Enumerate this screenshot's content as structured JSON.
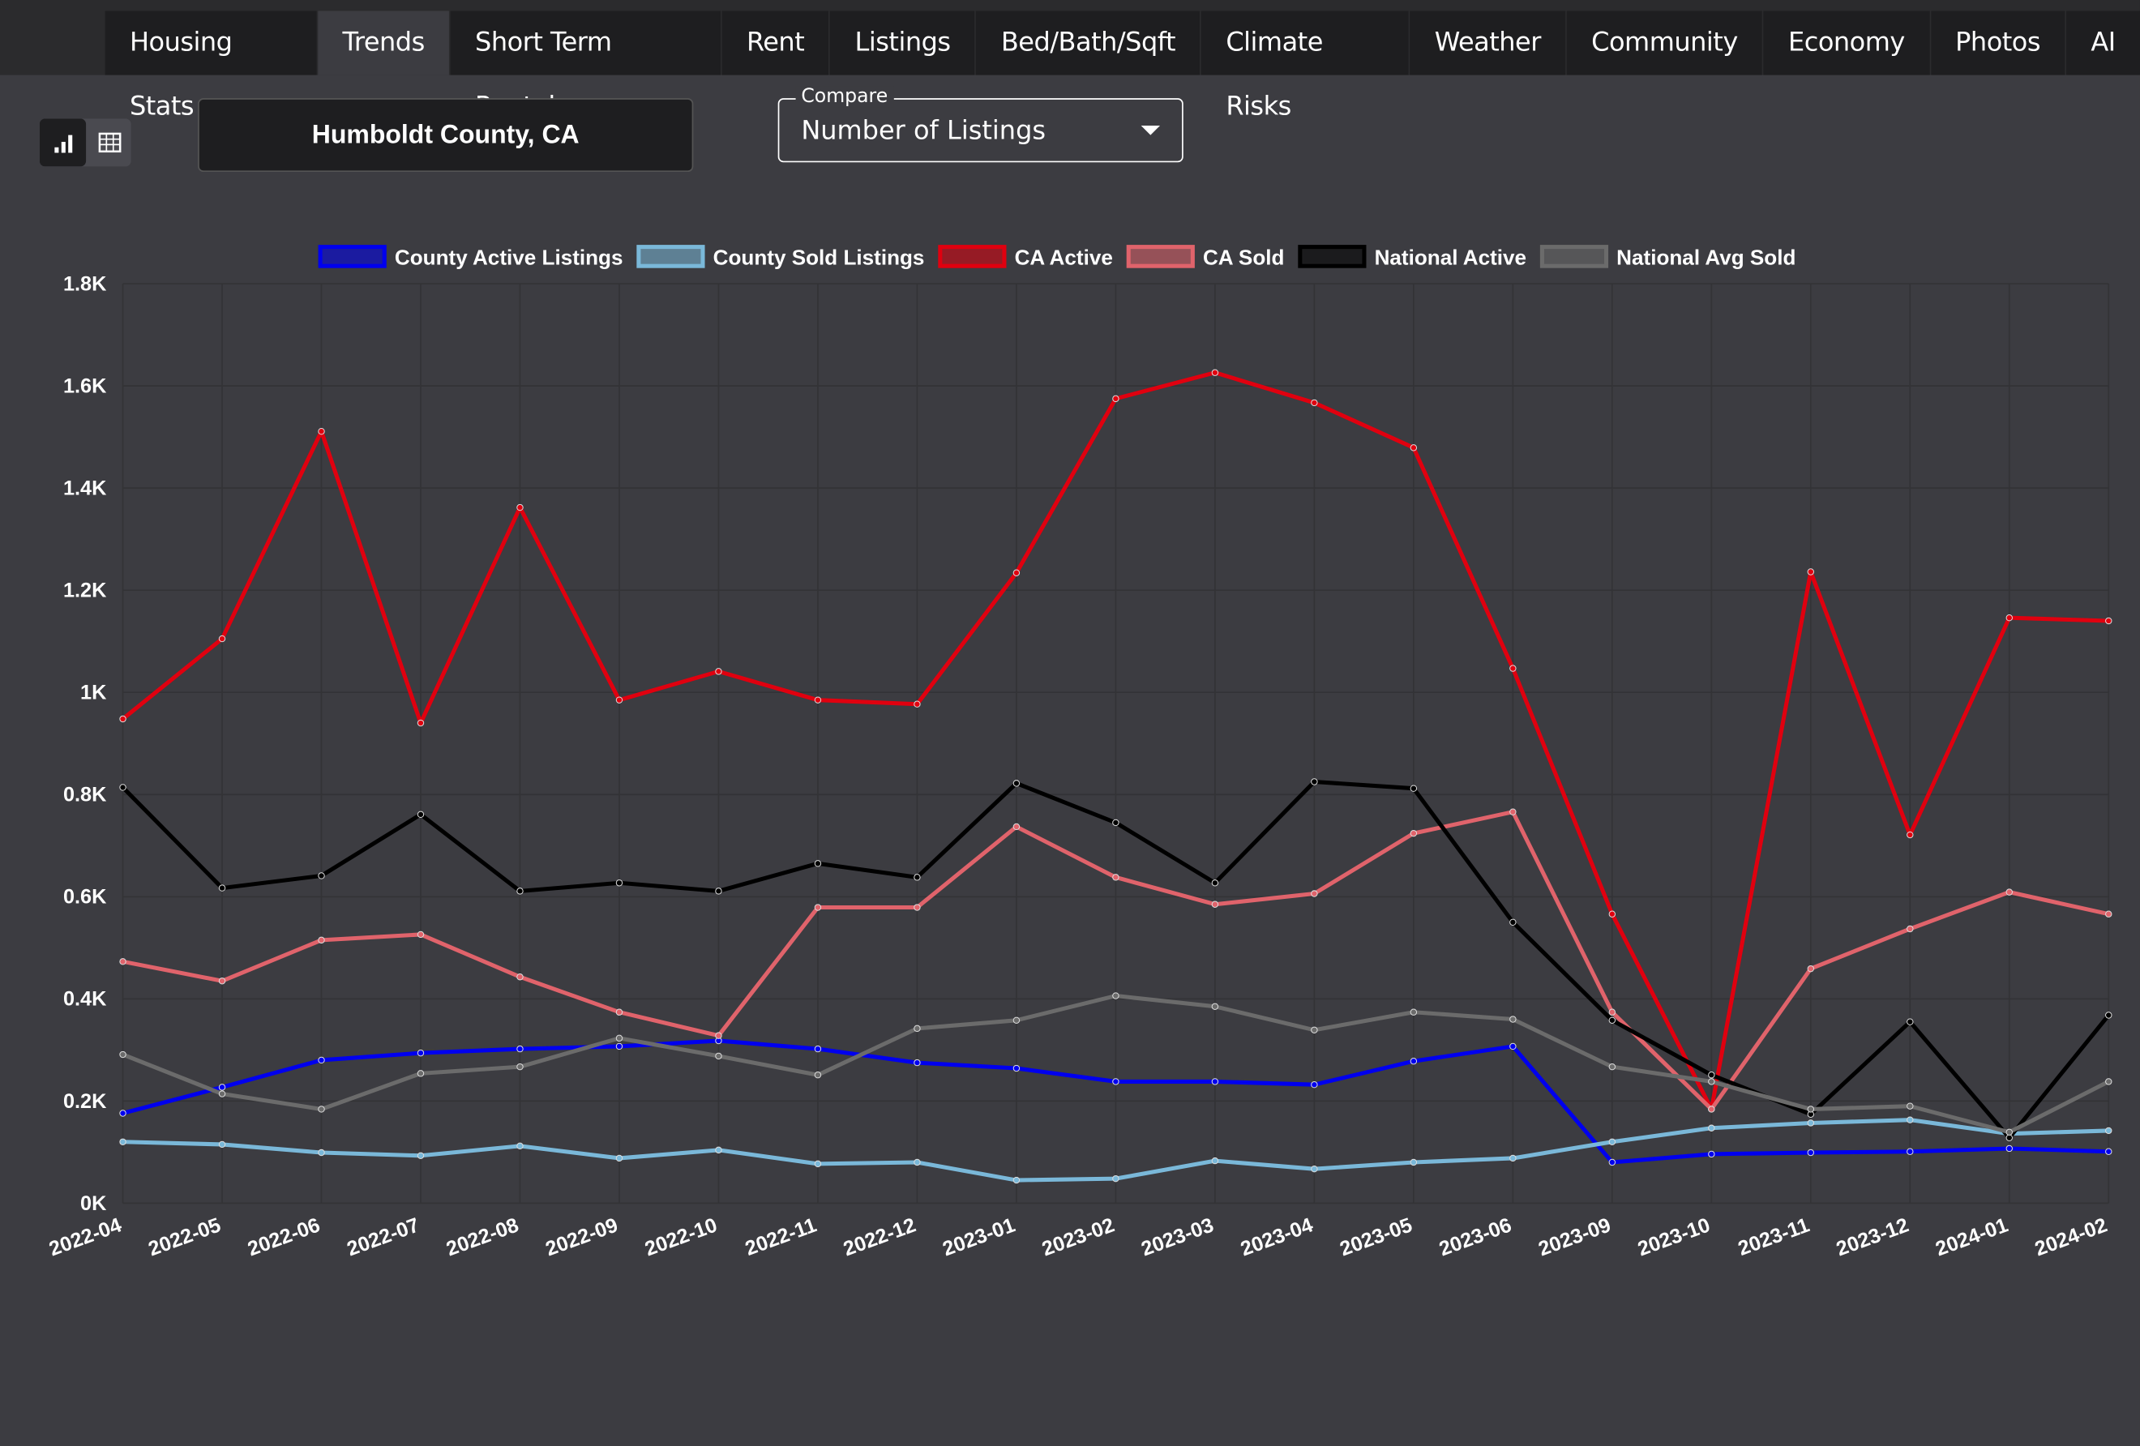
{
  "tabs": [
    "Housing Stats",
    "Trends",
    "Short Term Rentals",
    "Rent",
    "Listings",
    "Bed/Bath/Sqft",
    "Climate Risks",
    "Weather",
    "Community",
    "Economy",
    "Photos",
    "AI"
  ],
  "location": "Humboldt County, CA",
  "compare": {
    "label": "Compare",
    "value": "Number of Listings"
  },
  "chart_data": {
    "type": "line",
    "categories": [
      "2022-04",
      "2022-05",
      "2022-06",
      "2022-07",
      "2022-08",
      "2022-09",
      "2022-10",
      "2022-11",
      "2022-12",
      "2023-01",
      "2023-02",
      "2023-03",
      "2023-04",
      "2023-05",
      "2023-06",
      "2023-09",
      "2023-10",
      "2023-11",
      "2023-12",
      "2024-01",
      "2024-02"
    ],
    "ylim": [
      0,
      1800
    ],
    "yticks": [
      {
        "value": 0,
        "label": "0K"
      },
      {
        "value": 200,
        "label": "0.2K"
      },
      {
        "value": 400,
        "label": "0.4K"
      },
      {
        "value": 600,
        "label": "0.6K"
      },
      {
        "value": 800,
        "label": "0.8K"
      },
      {
        "value": 1000,
        "label": "1K"
      },
      {
        "value": 1200,
        "label": "1.2K"
      },
      {
        "value": 1400,
        "label": "1.4K"
      },
      {
        "value": 1600,
        "label": "1.6K"
      },
      {
        "value": 1800,
        "label": "1.8K"
      }
    ],
    "grid": true,
    "legend": "top",
    "series": [
      {
        "name": "County Active Listings",
        "color": "#0000ee",
        "values": [
          176,
          227,
          280,
          294,
          302,
          307,
          318,
          302,
          275,
          264,
          238,
          238,
          232,
          278,
          307,
          80,
          96,
          99,
          101,
          107,
          101
        ]
      },
      {
        "name": "County Sold Listings",
        "color": "#7ab8d9",
        "values": [
          120,
          115,
          99,
          93,
          112,
          88,
          104,
          77,
          80,
          45,
          48,
          83,
          67,
          80,
          88,
          120,
          147,
          157,
          163,
          136,
          142
        ]
      },
      {
        "name": "CA Active",
        "color": "#e0000f",
        "values": [
          948,
          1105,
          1511,
          940,
          1362,
          985,
          1041,
          985,
          977,
          1234,
          1575,
          1626,
          1567,
          1479,
          1047,
          566,
          184,
          1236,
          721,
          1146,
          1140
        ]
      },
      {
        "name": "CA Sold",
        "color": "#e0636b",
        "values": [
          473,
          435,
          515,
          526,
          443,
          374,
          328,
          579,
          579,
          737,
          638,
          585,
          606,
          724,
          766,
          374,
          184,
          459,
          537,
          609,
          566
        ]
      },
      {
        "name": "National Active",
        "color": "#000000",
        "values": [
          814,
          617,
          641,
          761,
          611,
          627,
          611,
          665,
          638,
          822,
          745,
          627,
          825,
          812,
          550,
          358,
          251,
          174,
          355,
          128,
          368
        ]
      },
      {
        "name": "National Avg Sold",
        "color": "#6b6b6b",
        "values": [
          291,
          214,
          184,
          254,
          267,
          323,
          288,
          251,
          342,
          358,
          406,
          385,
          339,
          374,
          360,
          267,
          238,
          184,
          190,
          139,
          238
        ]
      }
    ]
  }
}
